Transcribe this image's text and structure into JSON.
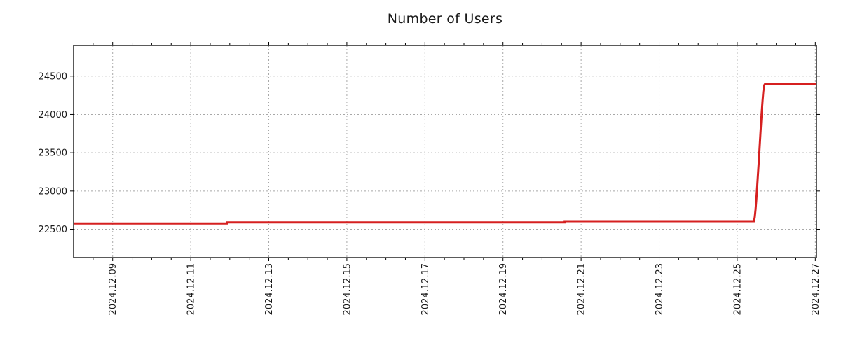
{
  "page": {
    "background": "#ffffff"
  },
  "chart_data": {
    "type": "line",
    "title": "Number of Users",
    "xlabel": "",
    "ylabel": "",
    "grid": true,
    "grid_style": "dotted",
    "legend": "none",
    "line_color": "#d62020",
    "grid_color": "#a8a8a8",
    "frame_color": "#000000",
    "text_color": "#1a1a1a",
    "tick_label_font_px": 13,
    "xlim_days": [
      8.0,
      27.03
    ],
    "ylim": [
      22130,
      24900
    ],
    "y_ticks": [
      22500,
      23000,
      23500,
      24000,
      24500
    ],
    "x_ticks": [
      {
        "day": 9,
        "label": "2024.12.09"
      },
      {
        "day": 11,
        "label": "2024.12.11"
      },
      {
        "day": 13,
        "label": "2024.12.13"
      },
      {
        "day": 15,
        "label": "2024.12.15"
      },
      {
        "day": 17,
        "label": "2024.12.17"
      },
      {
        "day": 19,
        "label": "2024.12.19"
      },
      {
        "day": 21,
        "label": "2024.12.21"
      },
      {
        "day": 23,
        "label": "2024.12.23"
      },
      {
        "day": 25,
        "label": "2024.12.25"
      },
      {
        "day": 27,
        "label": "2024.12.27"
      }
    ],
    "x_minor_step_days": 0.5,
    "series": [
      {
        "name": "Number of Users",
        "color": "#d62020",
        "points": [
          [
            8.0,
            22575
          ],
          [
            11.93,
            22575
          ],
          [
            11.93,
            22590
          ],
          [
            20.58,
            22590
          ],
          [
            20.58,
            22605
          ],
          [
            25.43,
            22605
          ],
          [
            25.45,
            22660
          ],
          [
            25.47,
            22760
          ],
          [
            25.49,
            22890
          ],
          [
            25.51,
            23040
          ],
          [
            25.53,
            23200
          ],
          [
            25.55,
            23370
          ],
          [
            25.57,
            23540
          ],
          [
            25.59,
            23710
          ],
          [
            25.61,
            23880
          ],
          [
            25.63,
            24040
          ],
          [
            25.65,
            24180
          ],
          [
            25.67,
            24300
          ],
          [
            25.69,
            24380
          ],
          [
            25.71,
            24395
          ],
          [
            27.03,
            24395
          ]
        ]
      }
    ]
  }
}
